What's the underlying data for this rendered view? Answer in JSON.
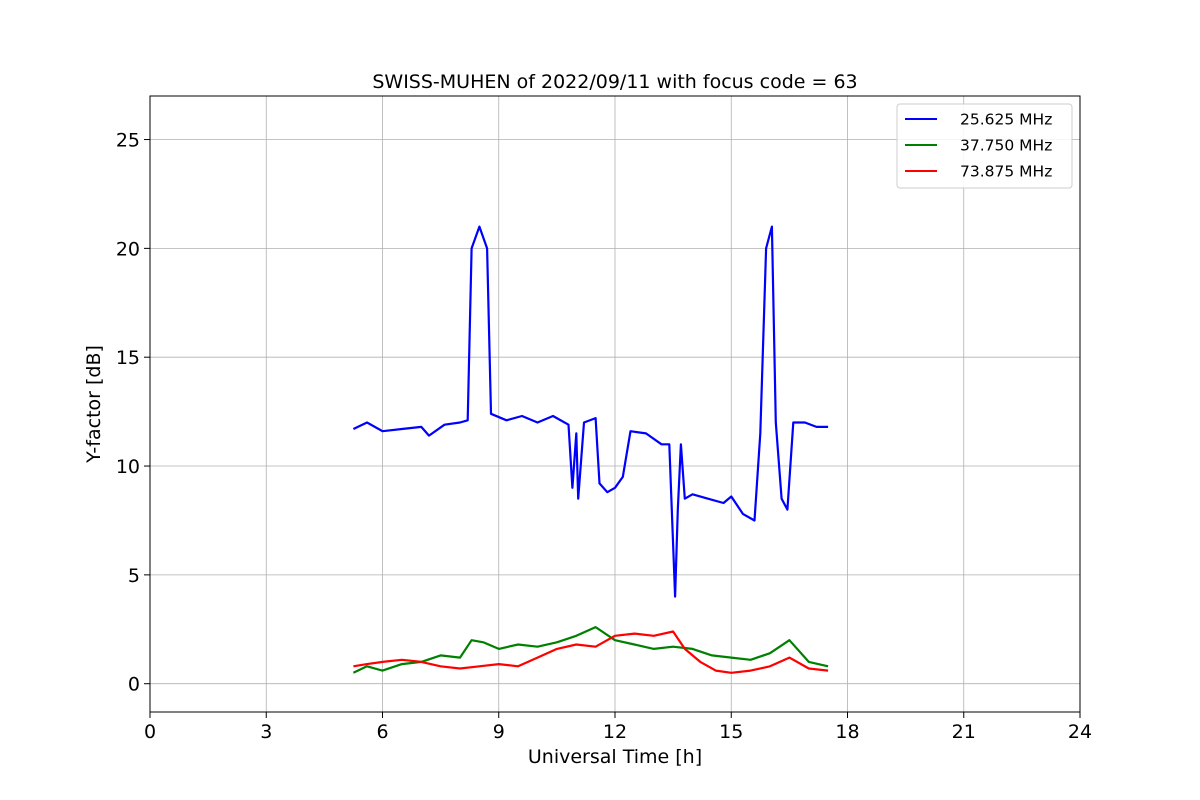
{
  "chart_data": {
    "type": "line",
    "title": "SWISS-MUHEN of 2022/09/11 with focus code = 63",
    "xlabel": "Universal Time [h]",
    "ylabel": "Y-factor [dB]",
    "xlim": [
      0,
      24
    ],
    "ylim": [
      -1.3,
      27
    ],
    "xticks": [
      0,
      3,
      6,
      9,
      12,
      15,
      18,
      21,
      24
    ],
    "yticks": [
      0,
      5,
      10,
      15,
      20,
      25
    ],
    "grid": true,
    "legend_position": "top-right",
    "series": [
      {
        "name": "25.625 MHz",
        "color": "#0000ff",
        "x": [
          5.25,
          5.6,
          6.0,
          6.5,
          7.0,
          7.2,
          7.6,
          8.0,
          8.2,
          8.3,
          8.5,
          8.7,
          8.8,
          9.2,
          9.6,
          10.0,
          10.4,
          10.8,
          10.9,
          11.0,
          11.05,
          11.2,
          11.5,
          11.6,
          11.8,
          12.0,
          12.2,
          12.4,
          12.8,
          13.2,
          13.4,
          13.55,
          13.62,
          13.7,
          13.8,
          14.0,
          14.4,
          14.8,
          15.0,
          15.3,
          15.6,
          15.75,
          15.9,
          16.05,
          16.15,
          16.3,
          16.45,
          16.6,
          16.9,
          17.2,
          17.5
        ],
        "y": [
          11.7,
          12.0,
          11.6,
          11.7,
          11.8,
          11.4,
          11.9,
          12.0,
          12.1,
          20.0,
          21.0,
          20.0,
          12.4,
          12.1,
          12.3,
          12.0,
          12.3,
          11.9,
          9.0,
          11.5,
          8.5,
          12.0,
          12.2,
          9.2,
          8.8,
          9.0,
          9.5,
          11.6,
          11.5,
          11.0,
          11.0,
          4.0,
          8.0,
          11.0,
          8.5,
          8.7,
          8.5,
          8.3,
          8.6,
          7.8,
          7.5,
          11.5,
          20.0,
          21.0,
          12.0,
          8.5,
          8.0,
          12.0,
          12.0,
          11.8,
          11.8
        ]
      },
      {
        "name": "37.750 MHz",
        "color": "#008000",
        "x": [
          5.25,
          5.6,
          6.0,
          6.5,
          7.0,
          7.5,
          8.0,
          8.3,
          8.6,
          9.0,
          9.5,
          10.0,
          10.5,
          11.0,
          11.5,
          12.0,
          12.5,
          13.0,
          13.5,
          14.0,
          14.5,
          15.0,
          15.5,
          16.0,
          16.5,
          17.0,
          17.5
        ],
        "y": [
          0.5,
          0.8,
          0.6,
          0.9,
          1.0,
          1.3,
          1.2,
          2.0,
          1.9,
          1.6,
          1.8,
          1.7,
          1.9,
          2.2,
          2.6,
          2.0,
          1.8,
          1.6,
          1.7,
          1.6,
          1.3,
          1.2,
          1.1,
          1.4,
          2.0,
          1.0,
          0.8
        ]
      },
      {
        "name": "73.875 MHz",
        "color": "#ff0000",
        "x": [
          5.25,
          5.6,
          6.0,
          6.5,
          7.0,
          7.5,
          8.0,
          8.5,
          9.0,
          9.5,
          10.0,
          10.5,
          11.0,
          11.5,
          12.0,
          12.5,
          13.0,
          13.5,
          13.8,
          14.2,
          14.6,
          15.0,
          15.5,
          16.0,
          16.5,
          17.0,
          17.5
        ],
        "y": [
          0.8,
          0.9,
          1.0,
          1.1,
          1.0,
          0.8,
          0.7,
          0.8,
          0.9,
          0.8,
          1.2,
          1.6,
          1.8,
          1.7,
          2.2,
          2.3,
          2.2,
          2.4,
          1.6,
          1.0,
          0.6,
          0.5,
          0.6,
          0.8,
          1.2,
          0.7,
          0.6
        ]
      }
    ]
  }
}
